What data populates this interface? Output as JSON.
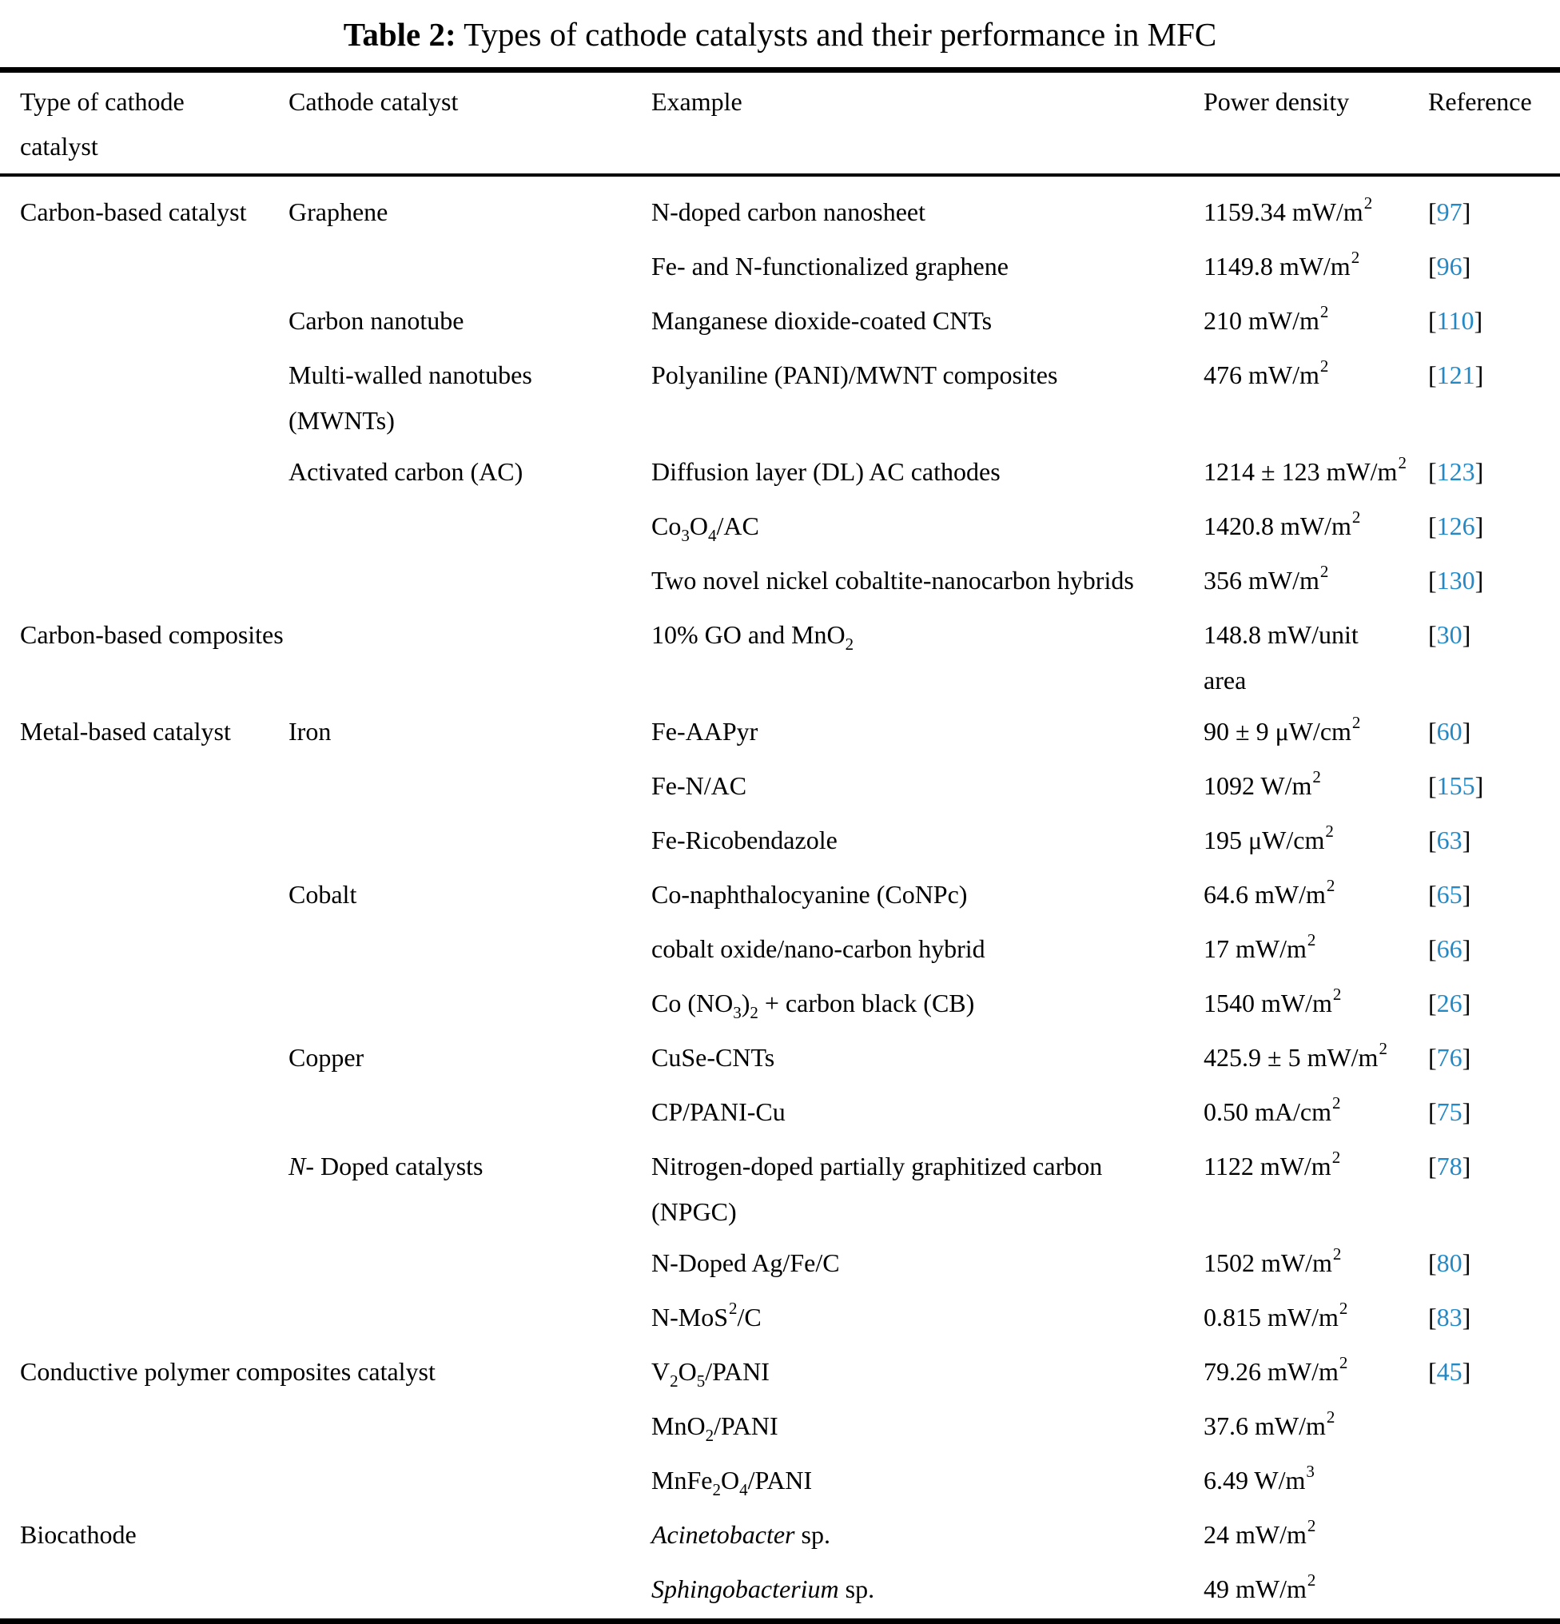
{
  "accent_color": "#2389c6",
  "table": {
    "title": {
      "label": "Table 2:",
      "text": " Types of cathode catalysts and their performance in MFC"
    },
    "columns": [
      {
        "name": "Type of cathode catalyst",
        "segments": [
          {
            "t": "Type of cathode"
          },
          {
            "br": true
          },
          {
            "t": "catalyst"
          }
        ]
      },
      {
        "name": "Cathode catalyst",
        "segments": [
          {
            "t": "Cathode catalyst"
          }
        ]
      },
      {
        "name": "Example",
        "segments": [
          {
            "t": "Example"
          }
        ]
      },
      {
        "name": "Power density",
        "segments": [
          {
            "t": "Power density"
          }
        ]
      },
      {
        "name": "Reference",
        "segments": [
          {
            "t": "Reference"
          }
        ]
      }
    ],
    "rows": [
      {
        "type": [
          {
            "t": "Carbon-based catalyst"
          }
        ],
        "catalyst": [
          {
            "t": "Graphene"
          }
        ],
        "example": [
          {
            "t": "N-doped carbon nanosheet"
          }
        ],
        "power": [
          {
            "t": "1159.34 mW/m"
          },
          {
            "t": "2",
            "s": "sup"
          }
        ],
        "ref": "97"
      },
      {
        "type": [],
        "catalyst": [],
        "example": [
          {
            "t": "Fe- and N-functionalized graphene"
          }
        ],
        "power": [
          {
            "t": "1149.8 mW/m"
          },
          {
            "t": "2",
            "s": "sup"
          }
        ],
        "ref": "96"
      },
      {
        "type": [],
        "catalyst": [
          {
            "t": "Carbon nanotube"
          }
        ],
        "example": [
          {
            "t": "Manganese dioxide-coated CNTs"
          }
        ],
        "power": [
          {
            "t": "210 mW/m"
          },
          {
            "t": "2",
            "s": "sup"
          }
        ],
        "ref": "110"
      },
      {
        "type": [],
        "catalyst": [
          {
            "t": "Multi-walled nanotubes"
          },
          {
            "br": true
          },
          {
            "t": "(MWNTs)"
          }
        ],
        "example": [
          {
            "t": "Polyaniline (PANI)/MWNT composites"
          }
        ],
        "power": [
          {
            "t": "476 mW/m"
          },
          {
            "t": "2",
            "s": "sup"
          }
        ],
        "ref": "121"
      },
      {
        "type": [],
        "catalyst": [
          {
            "t": "Activated carbon (AC)"
          }
        ],
        "example": [
          {
            "t": "Diffusion layer (DL) AC cathodes"
          }
        ],
        "power": [
          {
            "t": "1214 ± 123 mW/m"
          },
          {
            "t": "2",
            "s": "sup"
          }
        ],
        "ref": "123"
      },
      {
        "type": [],
        "catalyst": [],
        "example": [
          {
            "t": "Co"
          },
          {
            "t": "3",
            "s": "sub"
          },
          {
            "t": "O"
          },
          {
            "t": "4",
            "s": "sub"
          },
          {
            "t": "/AC"
          }
        ],
        "power": [
          {
            "t": "1420.8 mW/m"
          },
          {
            "t": "2",
            "s": "sup"
          }
        ],
        "ref": "126"
      },
      {
        "type": [],
        "catalyst": [],
        "example": [
          {
            "t": "Two novel nickel cobaltite-nanocarbon hybrids"
          }
        ],
        "power": [
          {
            "t": "356 mW/m"
          },
          {
            "t": "2",
            "s": "sup"
          }
        ],
        "ref": "130"
      },
      {
        "type": [
          {
            "t": "Carbon-based composites"
          }
        ],
        "type_span": 2,
        "example": [
          {
            "t": "10% GO and MnO"
          },
          {
            "t": "2",
            "s": "sub"
          }
        ],
        "power": [
          {
            "t": "148.8 mW/unit"
          },
          {
            "br": true
          },
          {
            "t": "area"
          }
        ],
        "ref": "30"
      },
      {
        "type": [
          {
            "t": "Metal-based catalyst"
          }
        ],
        "catalyst": [
          {
            "t": "Iron"
          }
        ],
        "example": [
          {
            "t": "Fe-AAPyr"
          }
        ],
        "power": [
          {
            "t": "90 ± 9 μW/cm"
          },
          {
            "t": "2",
            "s": "sup"
          }
        ],
        "ref": "60"
      },
      {
        "type": [],
        "catalyst": [],
        "example": [
          {
            "t": "Fe-N/AC"
          }
        ],
        "power": [
          {
            "t": "1092 W/m"
          },
          {
            "t": "2",
            "s": "sup"
          }
        ],
        "ref": "155"
      },
      {
        "type": [],
        "catalyst": [],
        "example": [
          {
            "t": "Fe-Ricobendazole"
          }
        ],
        "power": [
          {
            "t": "195 μW/cm"
          },
          {
            "t": "2",
            "s": "sup"
          }
        ],
        "ref": "63"
      },
      {
        "type": [],
        "catalyst": [
          {
            "t": "Cobalt"
          }
        ],
        "example": [
          {
            "t": "Co-naphthalocyanine (CoNPc)"
          }
        ],
        "power": [
          {
            "t": "64.6 mW/m"
          },
          {
            "t": "2",
            "s": "sup"
          }
        ],
        "ref": "65"
      },
      {
        "type": [],
        "catalyst": [],
        "example": [
          {
            "t": "cobalt oxide/nano-carbon hybrid"
          }
        ],
        "power": [
          {
            "t": "17 mW/m"
          },
          {
            "t": "2",
            "s": "sup"
          }
        ],
        "ref": "66"
      },
      {
        "type": [],
        "catalyst": [],
        "example": [
          {
            "t": "Co (NO"
          },
          {
            "t": "3",
            "s": "sub"
          },
          {
            "t": ")"
          },
          {
            "t": "2",
            "s": "sub"
          },
          {
            "t": " + carbon black (CB)"
          }
        ],
        "power": [
          {
            "t": "1540 mW/m"
          },
          {
            "t": "2",
            "s": "sup"
          }
        ],
        "ref": "26"
      },
      {
        "type": [],
        "catalyst": [
          {
            "t": "Copper"
          }
        ],
        "example": [
          {
            "t": "CuSe-CNTs"
          }
        ],
        "power": [
          {
            "t": "425.9 ± 5 mW/m"
          },
          {
            "t": "2",
            "s": "sup"
          }
        ],
        "ref": "76"
      },
      {
        "type": [],
        "catalyst": [],
        "example": [
          {
            "t": "CP/PANI-Cu"
          }
        ],
        "power": [
          {
            "t": "0.50 mA/cm"
          },
          {
            "t": "2",
            "s": "sup"
          }
        ],
        "ref": "75"
      },
      {
        "type": [],
        "catalyst": [
          {
            "t": "N",
            "s": "i"
          },
          {
            "t": "- Doped catalysts"
          }
        ],
        "example": [
          {
            "t": "Nitrogen-doped partially graphitized carbon"
          },
          {
            "br": true
          },
          {
            "t": "(NPGC)"
          }
        ],
        "power": [
          {
            "t": "1122 mW/m"
          },
          {
            "t": "2",
            "s": "sup"
          }
        ],
        "ref": "78"
      },
      {
        "type": [],
        "catalyst": [],
        "example": [
          {
            "t": "N-Doped Ag/Fe/C"
          }
        ],
        "power": [
          {
            "t": "1502 mW/m"
          },
          {
            "t": "2",
            "s": "sup"
          }
        ],
        "ref": "80"
      },
      {
        "type": [],
        "catalyst": [],
        "example": [
          {
            "t": "N-MoS"
          },
          {
            "t": "2",
            "s": "sup"
          },
          {
            "t": "/C"
          }
        ],
        "power": [
          {
            "t": "0.815 mW/m"
          },
          {
            "t": "2",
            "s": "sup"
          }
        ],
        "ref": "83"
      },
      {
        "type": [
          {
            "t": "Conductive polymer composites catalyst"
          }
        ],
        "type_span": 2,
        "example": [
          {
            "t": "V"
          },
          {
            "t": "2",
            "s": "sub"
          },
          {
            "t": "O"
          },
          {
            "t": "5",
            "s": "sub"
          },
          {
            "t": "/PANI"
          }
        ],
        "power": [
          {
            "t": "79.26 mW/m"
          },
          {
            "t": "2",
            "s": "sup"
          }
        ],
        "ref": "45"
      },
      {
        "type": [],
        "catalyst": [],
        "example": [
          {
            "t": "MnO"
          },
          {
            "t": "2",
            "s": "sub"
          },
          {
            "t": "/PANI"
          }
        ],
        "power": [
          {
            "t": "37.6 mW/m"
          },
          {
            "t": "2",
            "s": "sup"
          }
        ],
        "ref": null
      },
      {
        "type": [],
        "catalyst": [],
        "example": [
          {
            "t": "MnFe"
          },
          {
            "t": "2",
            "s": "sub"
          },
          {
            "t": "O"
          },
          {
            "t": "4",
            "s": "sub"
          },
          {
            "t": "/PANI"
          }
        ],
        "power": [
          {
            "t": "6.49 W/m"
          },
          {
            "t": "3",
            "s": "sup"
          }
        ],
        "ref": null
      },
      {
        "type": [
          {
            "t": "Biocathode"
          }
        ],
        "type_span": 2,
        "example": [
          {
            "t": "Acinetobacter",
            "s": "i"
          },
          {
            "t": " sp."
          }
        ],
        "power": [
          {
            "t": "24 mW/m"
          },
          {
            "t": "2",
            "s": "sup"
          }
        ],
        "ref": null
      },
      {
        "type": [],
        "catalyst": [],
        "example": [
          {
            "t": "Sphingobacterium",
            "s": "i"
          },
          {
            "t": " sp."
          }
        ],
        "power": [
          {
            "t": "49 mW/m"
          },
          {
            "t": "2",
            "s": "sup"
          }
        ],
        "ref": null
      }
    ]
  }
}
